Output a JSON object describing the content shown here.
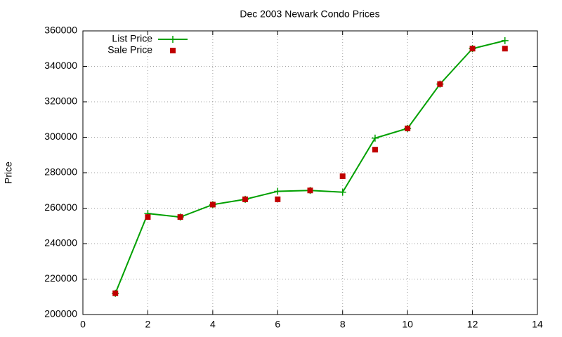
{
  "chart_data": {
    "type": "line",
    "title": "Dec 2003 Newark Condo Prices",
    "y_label": "Price",
    "x": [
      1,
      2,
      3,
      4,
      5,
      6,
      7,
      8,
      9,
      10,
      11,
      12,
      13
    ],
    "series": [
      {
        "name": "List Price",
        "color": "#00a000",
        "style": "linespoints",
        "values": [
          212000,
          257000,
          255000,
          262000,
          265000,
          269500,
          270000,
          269000,
          299500,
          305000,
          330000,
          350000,
          354500
        ]
      },
      {
        "name": "Sale Price",
        "color": "#c00000",
        "style": "points",
        "values": [
          212000,
          255000,
          255000,
          262000,
          265000,
          265000,
          270000,
          278000,
          293000,
          305000,
          330000,
          350000,
          350000
        ]
      }
    ],
    "xlim": [
      0,
      14
    ],
    "xticks": [
      0,
      2,
      4,
      6,
      8,
      10,
      12,
      14
    ],
    "ylim": [
      200000,
      360000
    ],
    "yticks": [
      200000,
      220000,
      240000,
      260000,
      280000,
      300000,
      320000,
      340000,
      360000
    ],
    "grid": true,
    "legend": "top-left"
  }
}
